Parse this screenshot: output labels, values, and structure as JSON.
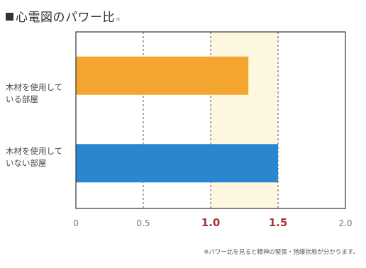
{
  "chart_data": {
    "type": "bar",
    "orientation": "horizontal",
    "title": "心電図のパワー比",
    "title_note": "※",
    "categories": [
      [
        "木材を使用して",
        "いる部屋"
      ],
      [
        "木材を使用して",
        "いない部屋"
      ]
    ],
    "values": [
      1.28,
      1.5
    ],
    "bar_colors": [
      "#f3a52f",
      "#2a86cf"
    ],
    "xlim": [
      0,
      2.0
    ],
    "xticks": [
      "0",
      "0.5",
      "1.0",
      "1.5",
      "2.0"
    ],
    "emphasized_ticks": [
      "1.0",
      "1.5"
    ],
    "emphasis_color": "#a8353a",
    "highlight_band": [
      1.0,
      1.5
    ],
    "highlight_color": "#fdf7e0",
    "grid": "dashed vertical",
    "footnote": "※パワー比を見ると精神の緊張・弛緩状態が分かります。"
  }
}
